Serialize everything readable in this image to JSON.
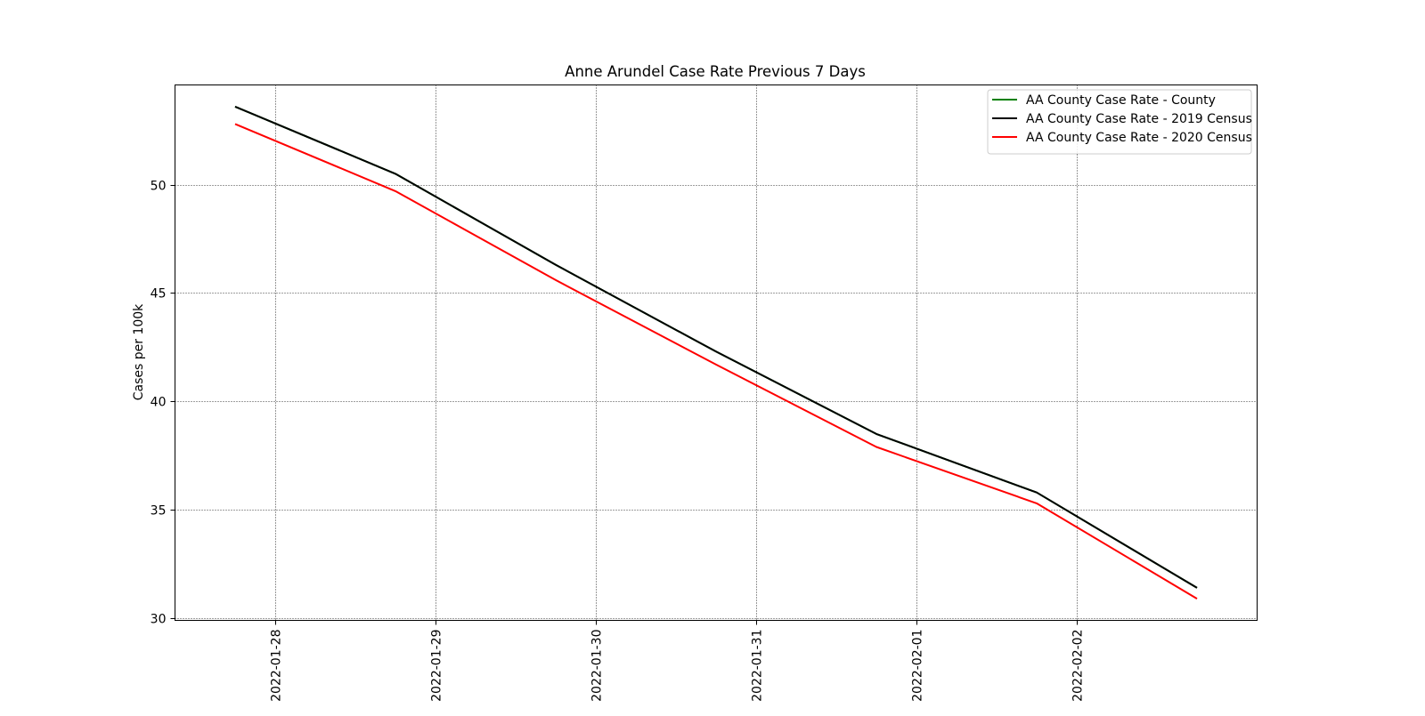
{
  "chart_data": {
    "type": "line",
    "title": "Anne Arundel Case Rate Previous 7 Days",
    "xlabel": "",
    "ylabel": "Cases per 100k",
    "x": [
      "2022-01-27 18:00",
      "2022-01-28 18:00",
      "2022-01-29 18:00",
      "2022-01-30 18:00",
      "2022-01-31 18:00",
      "2022-02-01 18:00",
      "2022-02-02 18:00"
    ],
    "x_ticks": [
      "2022-01-28",
      "2022-01-29",
      "2022-01-30",
      "2022-01-31",
      "2022-02-01",
      "2022-02-02"
    ],
    "xlim": [
      "2022-01-27 09:00",
      "2022-02-03 03:00"
    ],
    "y_ticks": [
      30,
      35,
      40,
      45,
      50
    ],
    "ylim": [
      29.9,
      54.6
    ],
    "grid": true,
    "grid_style": "dotted",
    "legend_position": "top-right",
    "series": [
      {
        "name": "AA County Case Rate - County",
        "color": "#008000",
        "values": [
          53.6,
          50.5,
          46.3,
          42.3,
          38.5,
          35.8,
          31.4
        ]
      },
      {
        "name": "AA County Case Rate - 2019 Census",
        "color": "#000000",
        "values": [
          53.6,
          50.5,
          46.3,
          42.3,
          38.5,
          35.8,
          31.4
        ]
      },
      {
        "name": "AA County Case Rate - 2020 Census",
        "color": "#ff0000",
        "values": [
          52.8,
          49.7,
          45.6,
          41.7,
          37.9,
          35.3,
          30.9
        ]
      }
    ]
  }
}
